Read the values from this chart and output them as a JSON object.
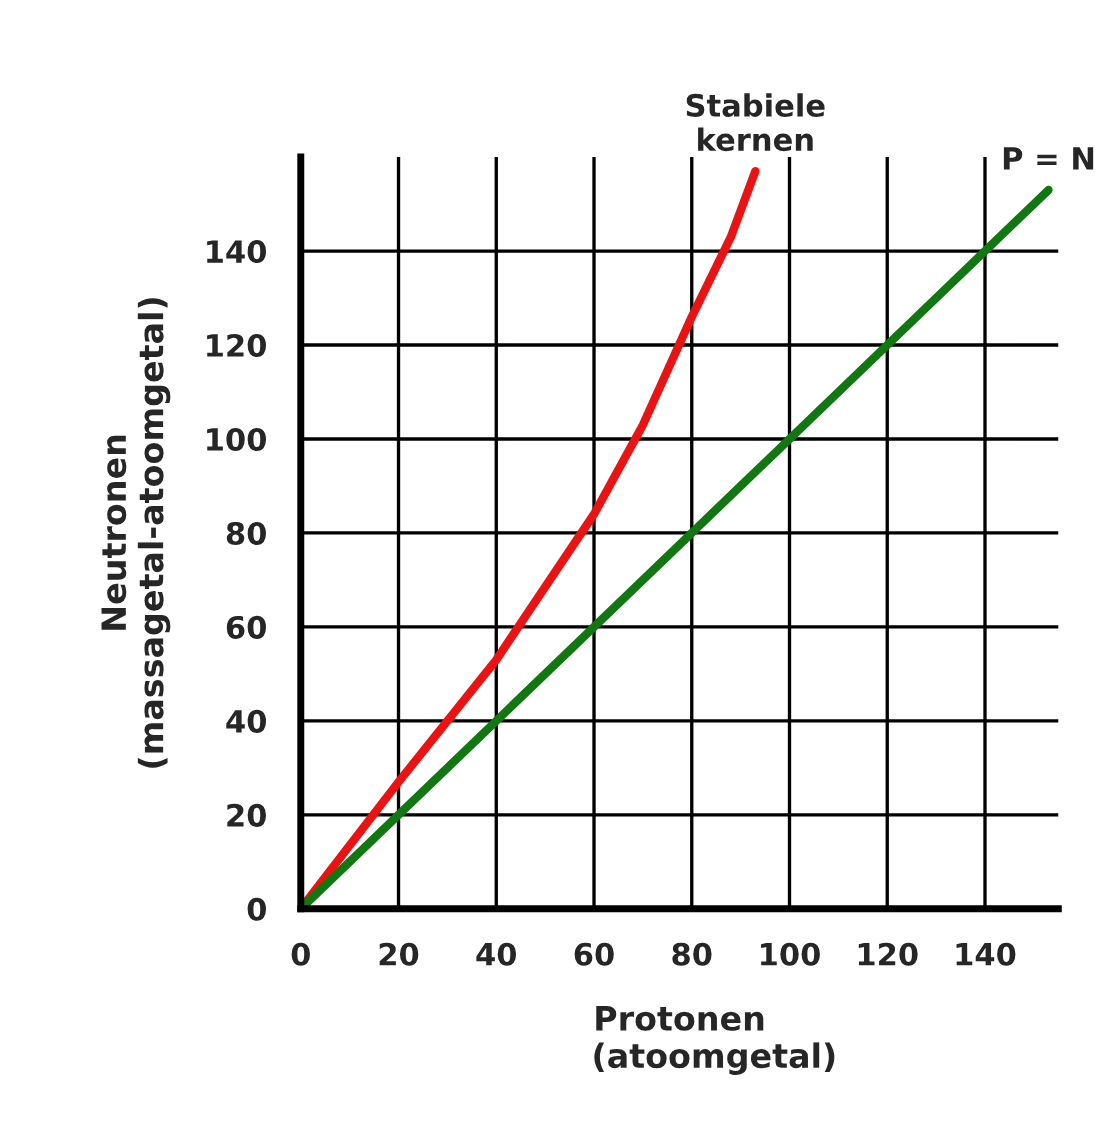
{
  "chart_data": {
    "type": "line",
    "xlabel": "Protonen\n      (atoomgetal)",
    "ylabel": "Neutronen\n(massagetal-atoomgetal)",
    "xlim": [
      0,
      155
    ],
    "ylim": [
      0,
      160
    ],
    "xticks": [
      0,
      20,
      40,
      60,
      80,
      100,
      120,
      140
    ],
    "yticks": [
      0,
      20,
      40,
      60,
      80,
      100,
      120,
      140
    ],
    "grid": true,
    "series": [
      {
        "name": "Stabiele\nkernen",
        "color": "#ee1111",
        "x": [
          0,
          20,
          40,
          60,
          70,
          80,
          88,
          93
        ],
        "values": [
          0,
          27,
          53,
          84,
          103,
          126,
          143,
          157
        ]
      },
      {
        "name": "P = N",
        "color": "#117711",
        "x": [
          0,
          153
        ],
        "values": [
          0,
          153
        ]
      }
    ]
  }
}
